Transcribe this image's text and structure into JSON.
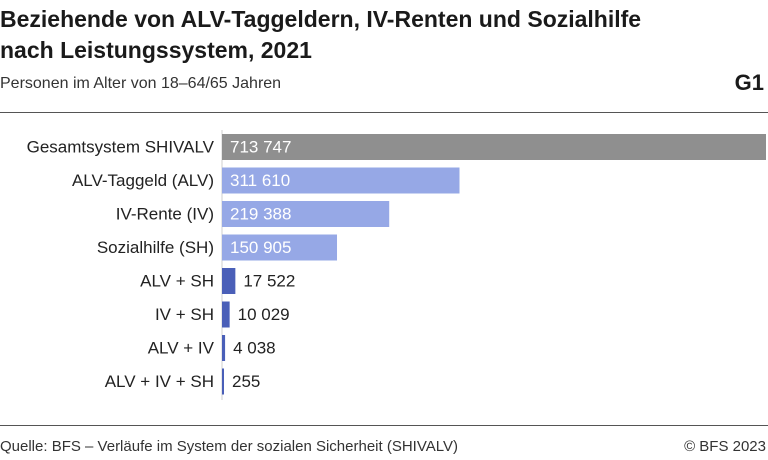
{
  "header": {
    "title": "Beziehende von ALV-Taggeldern, IV-Renten und Sozialhilfe nach Leistungssystem, 2021",
    "subtitle": "Personen im Alter von 18–64/65 Jahren",
    "figure_id": "G1"
  },
  "footer": {
    "source": "Quelle: BFS – Verläufe im System der sozialen Sicherheit (SHIVALV)",
    "copyright": "© BFS 2023"
  },
  "colors": {
    "total": "#8f8f8f",
    "single": "#96a8e6",
    "combined": "#4a5fb8"
  },
  "chart_data": {
    "type": "bar",
    "orientation": "horizontal",
    "categories": [
      "Gesamtsystem SHIVALV",
      "ALV-Taggeld (ALV)",
      "IV-Rente (IV)",
      "Sozialhilfe (SH)",
      "ALV + SH",
      "IV + SH",
      "ALV + IV",
      "ALV + IV + SH"
    ],
    "values": [
      713747,
      311610,
      219388,
      150905,
      17522,
      10029,
      4038,
      255
    ],
    "labels": [
      "713 747",
      "311 610",
      "219 388",
      "150 905",
      "17 522",
      "10 029",
      "4 038",
      "255"
    ],
    "groups": [
      "total",
      "single",
      "single",
      "single",
      "combined",
      "combined",
      "combined",
      "combined"
    ],
    "xlim": [
      0,
      713747
    ],
    "grid": false,
    "legend": "none"
  }
}
